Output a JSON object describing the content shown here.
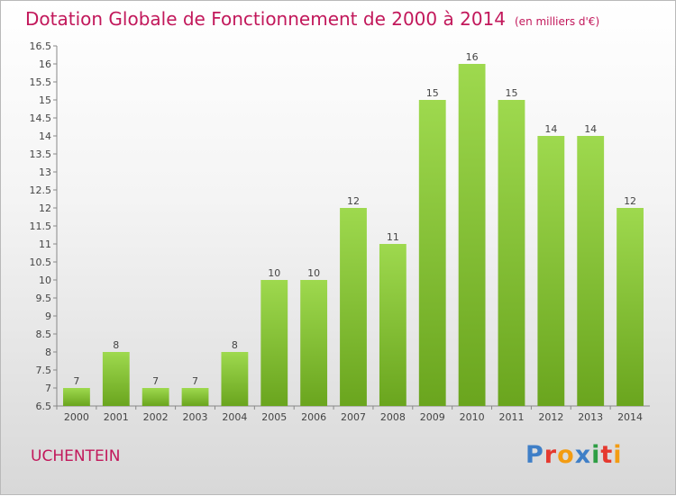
{
  "title": "Dotation Globale de Fonctionnement de 2000 à 2014",
  "unit": "(en milliers d'€)",
  "commune": "UCHENTEIN",
  "logo": {
    "text": "Proxiti",
    "letters": [
      {
        "ch": "P",
        "color": "#3f7fc7"
      },
      {
        "ch": "r",
        "color": "#e5392f"
      },
      {
        "ch": "o",
        "color": "#f39c12"
      },
      {
        "ch": "x",
        "color": "#3f7fc7"
      },
      {
        "ch": "i",
        "color": "#2e9e44"
      },
      {
        "ch": "t",
        "color": "#e5392f"
      },
      {
        "ch": "i",
        "color": "#f39c12"
      }
    ]
  },
  "colors": {
    "bar_top": "#9ed94e",
    "bar_bottom": "#6aa51e",
    "title": "#c2185b"
  },
  "chart_data": {
    "type": "bar",
    "categories": [
      "2000",
      "2001",
      "2002",
      "2003",
      "2004",
      "2005",
      "2006",
      "2007",
      "2008",
      "2009",
      "2010",
      "2011",
      "2012",
      "2013",
      "2014"
    ],
    "values": [
      7,
      8,
      7,
      7,
      8,
      10,
      10,
      12,
      11,
      15,
      16,
      15,
      14,
      14,
      12
    ],
    "ylim": [
      6.5,
      16.5
    ],
    "yticks": [
      "6.5",
      "7",
      "7.5",
      "8",
      "8.5",
      "9",
      "9.5",
      "10",
      "10.5",
      "11",
      "11.5",
      "12",
      "12.5",
      "13",
      "13.5",
      "14",
      "14.5",
      "15",
      "15.5",
      "16",
      "16.5"
    ],
    "grid": false
  }
}
